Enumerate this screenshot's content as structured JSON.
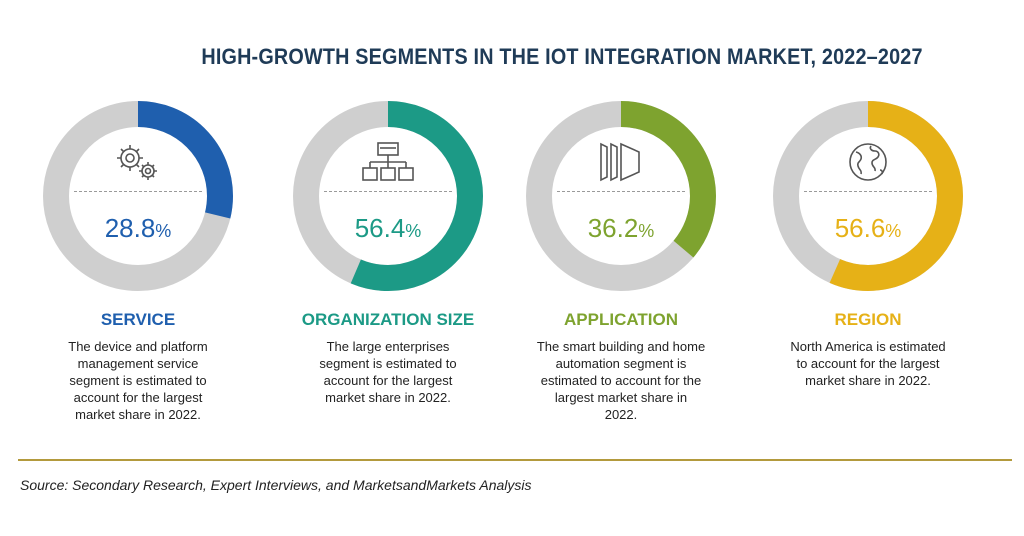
{
  "title": "HIGH-GROWTH SEGMENTS IN THE IOT INTEGRATION MARKET, 2022–2027",
  "chart_data": {
    "type": "pie",
    "segments": [
      {
        "category": "SERVICE",
        "value": 28.8,
        "value_label": "28.8",
        "unit": "%",
        "color": "#1f5fae",
        "icon": "gears-icon",
        "description": [
          "The device and platform",
          "management service",
          "segment is estimated to",
          "account for the largest",
          "market share in 2022."
        ]
      },
      {
        "category": "ORGANIZATION SIZE",
        "value": 56.4,
        "value_label": "56.4",
        "unit": "%",
        "color": "#1c9a86",
        "icon": "org-chart-icon",
        "description": [
          "The large enterprises",
          "segment is estimated to",
          "account for the largest",
          "market share in 2022."
        ]
      },
      {
        "category": "APPLICATION",
        "value": 36.2,
        "value_label": "36.2",
        "unit": "%",
        "color": "#7ea32f",
        "icon": "panels-icon",
        "description": [
          "The smart building and home",
          "automation segment is",
          "estimated to account for the",
          "largest market share in",
          "2022."
        ]
      },
      {
        "category": "REGION",
        "value": 56.6,
        "value_label": "56.6",
        "unit": "%",
        "color": "#e6b117",
        "icon": "globe-icon",
        "description": [
          "North America is estimated",
          "to account for the largest",
          "market share in 2022."
        ]
      }
    ]
  },
  "source": "Source: Secondary Research, Expert Interviews, and MarketsandMarkets Analysis"
}
